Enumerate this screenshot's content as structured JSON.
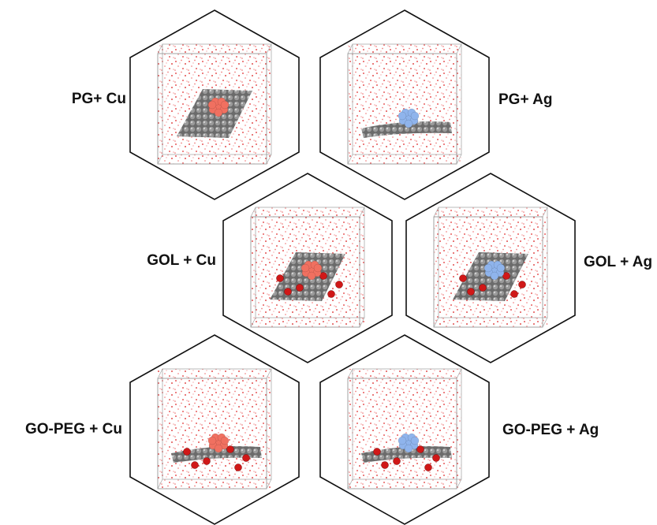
{
  "panels": [
    {
      "label": "PG+ Cu"
    },
    {
      "label": "PG+ Ag"
    },
    {
      "label": "GOL + Cu"
    },
    {
      "label": "GOL + Ag"
    },
    {
      "label": "GO-PEG + Cu"
    },
    {
      "label": "GO-PEG + Ag"
    }
  ]
}
